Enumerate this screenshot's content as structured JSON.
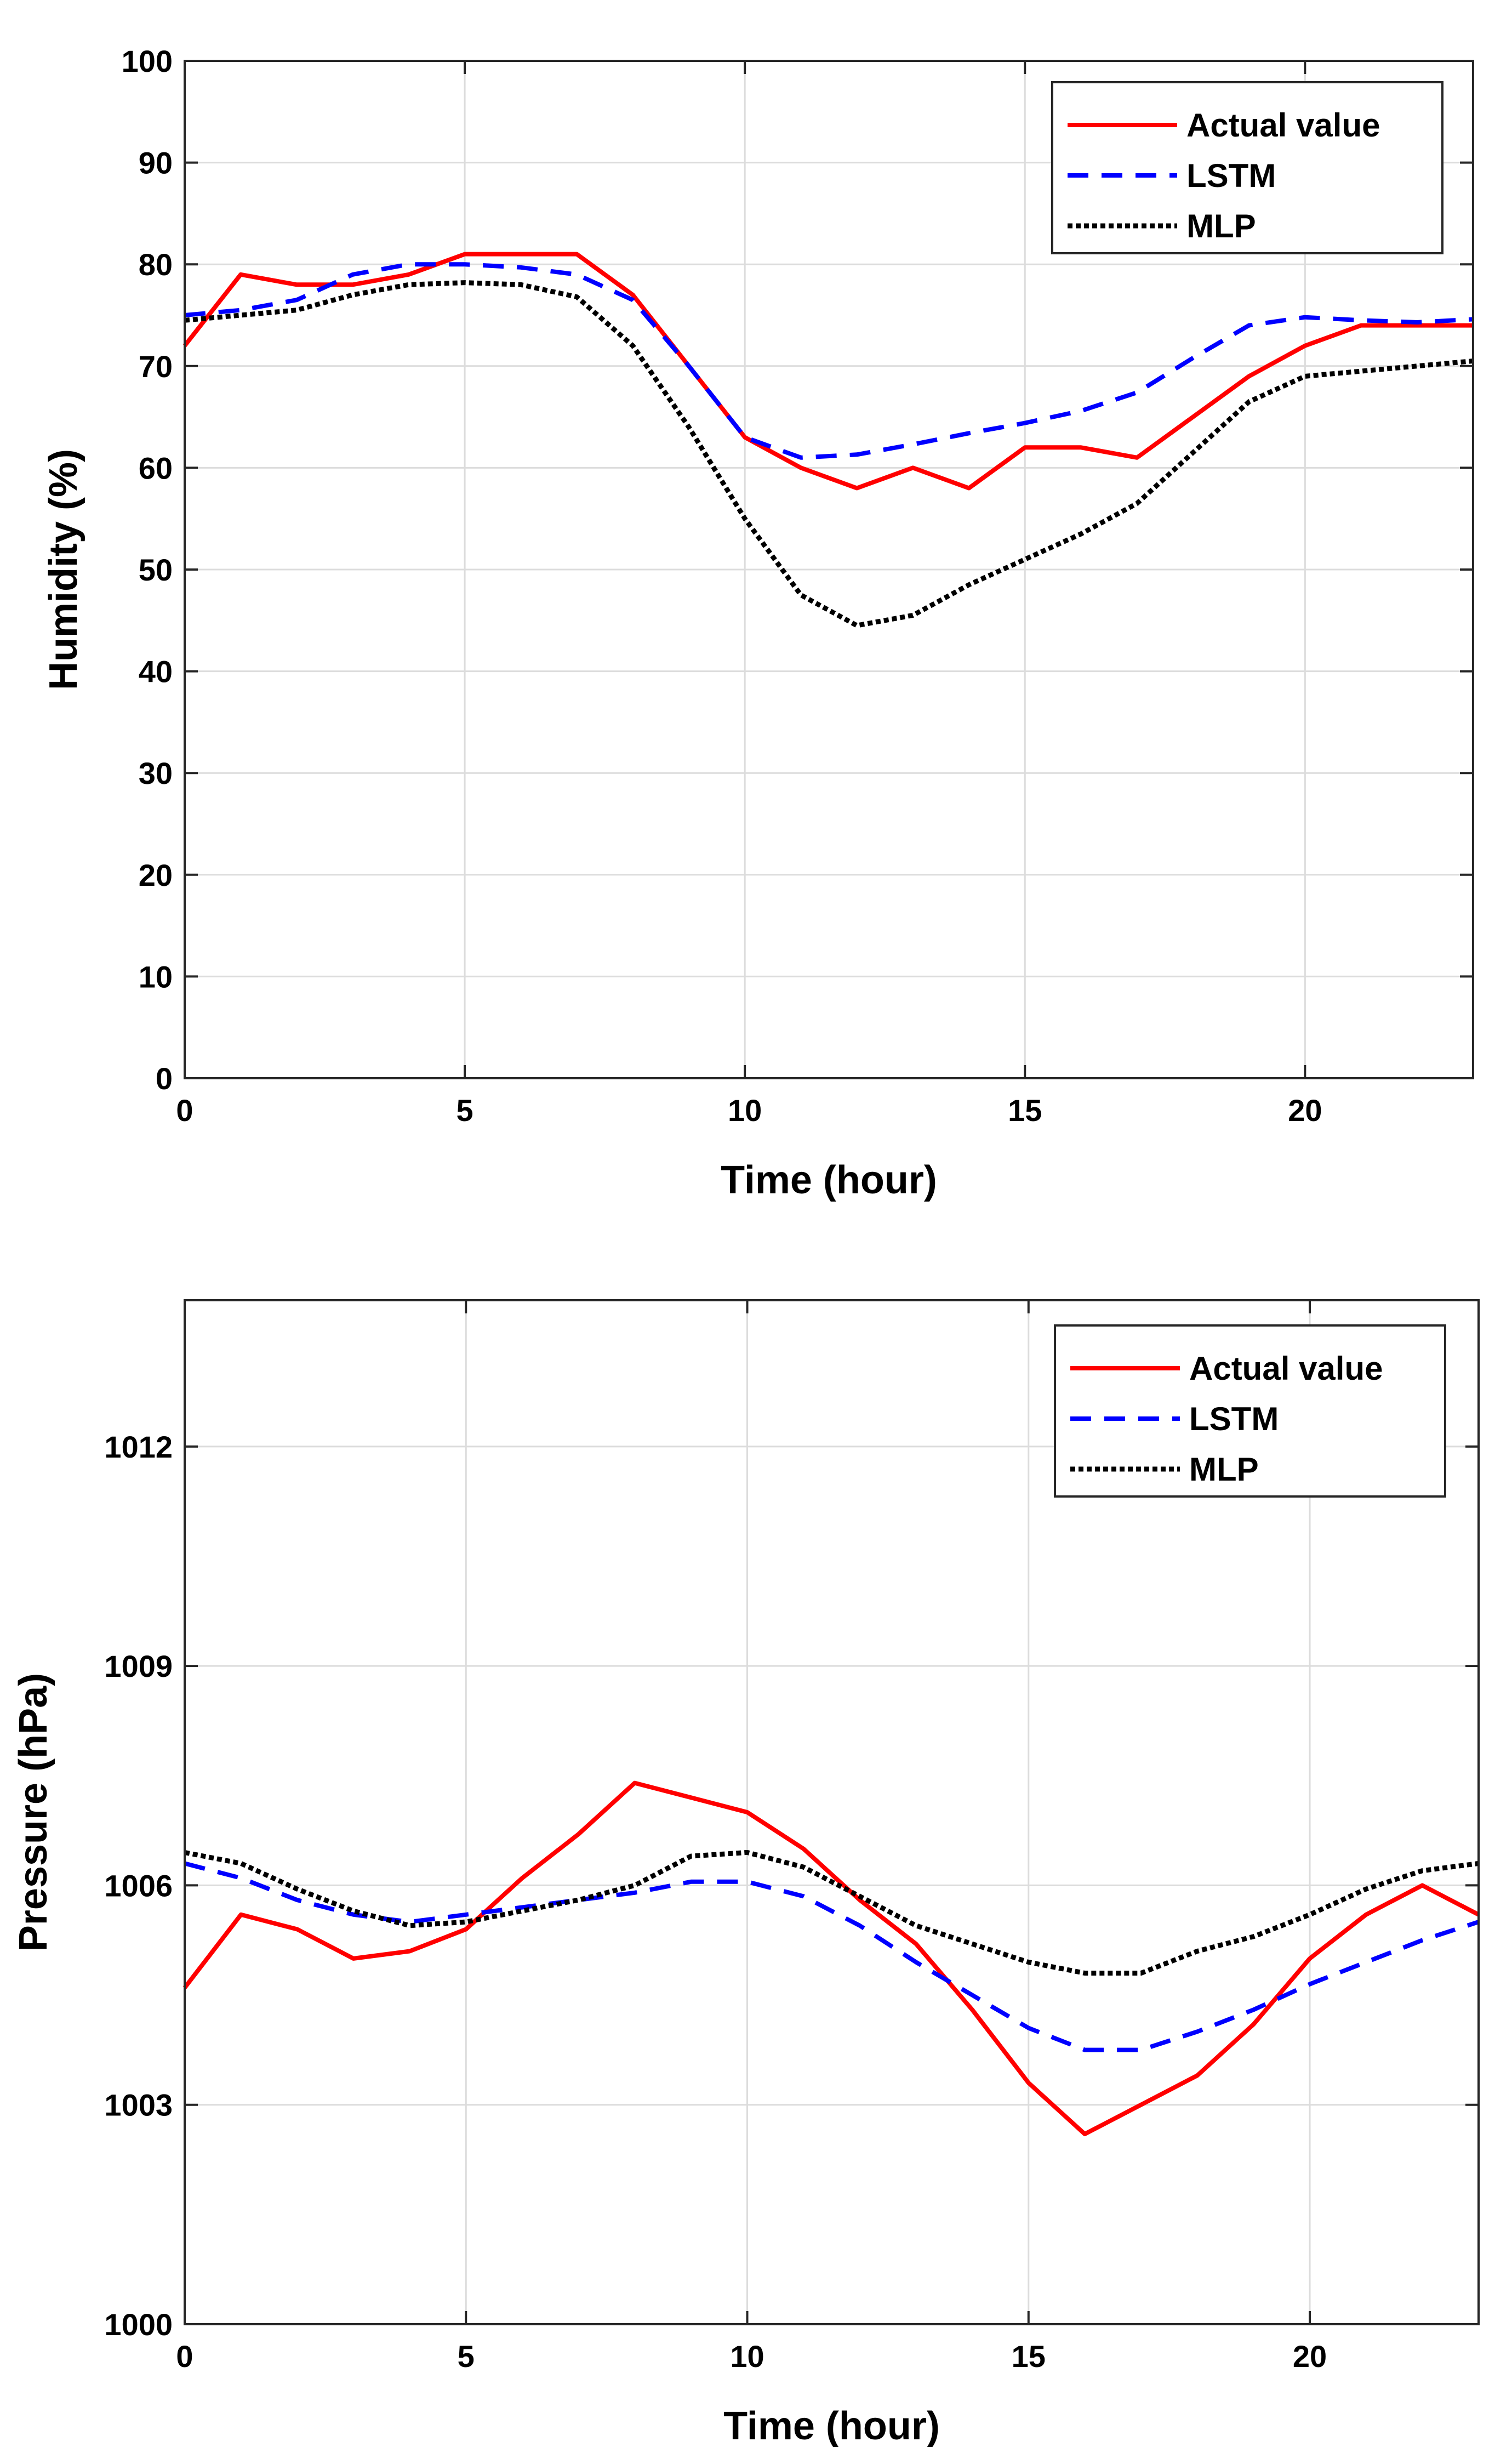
{
  "chart_data": [
    {
      "type": "line",
      "title": "",
      "xlabel": "Time (hour)",
      "ylabel": "Humidity (%)",
      "xlim": [
        0,
        23
      ],
      "ylim": [
        0,
        100
      ],
      "xticks": [
        0,
        5,
        10,
        15,
        20
      ],
      "xtick_labels": [
        "0",
        "5",
        "10",
        "15",
        "20"
      ],
      "yticks": [
        0,
        10,
        20,
        30,
        40,
        50,
        60,
        70,
        80,
        90,
        100
      ],
      "ytick_labels": [
        "0",
        "10",
        "20",
        "30",
        "40",
        "50",
        "60",
        "70",
        "80",
        "90",
        "100"
      ],
      "grid": true,
      "legend_position": "top-right",
      "x": [
        0,
        1,
        2,
        3,
        4,
        5,
        6,
        7,
        8,
        9,
        10,
        11,
        12,
        13,
        14,
        15,
        16,
        17,
        18,
        19,
        20,
        21,
        22,
        23
      ],
      "series": [
        {
          "name": "Actual value",
          "color": "#ff0000",
          "style": "solid",
          "values": [
            72,
            79,
            78,
            78,
            79,
            81,
            81,
            81,
            77,
            70,
            63,
            60,
            58,
            60,
            58,
            62,
            62,
            61,
            65,
            69,
            72,
            74,
            74,
            74
          ]
        },
        {
          "name": "LSTM",
          "color": "#0000ff",
          "style": "dashed",
          "values": [
            75,
            75.5,
            76.5,
            79,
            80,
            80,
            79.7,
            79,
            76.5,
            70,
            63,
            61,
            61.3,
            62.3,
            63.4,
            64.4,
            65.6,
            67.4,
            70.8,
            74,
            74.8,
            74.5,
            74.3,
            74.6
          ]
        },
        {
          "name": "MLP",
          "color": "#000000",
          "style": "dotted",
          "values": [
            74.5,
            75,
            75.5,
            77,
            78,
            78.2,
            78,
            76.8,
            72,
            64,
            55,
            47.5,
            44.5,
            45.5,
            48.5,
            51,
            53.5,
            56.5,
            61.5,
            66.5,
            69,
            69.5,
            70,
            70.5
          ]
        }
      ]
    },
    {
      "type": "line",
      "title": "",
      "xlabel": "Time (hour)",
      "ylabel": "Pressure (hPa)",
      "xlim": [
        0,
        23
      ],
      "ylim": [
        1000,
        1014
      ],
      "xticks": [
        0,
        5,
        10,
        15,
        20
      ],
      "xtick_labels": [
        "0",
        "5",
        "10",
        "15",
        "20"
      ],
      "yticks": [
        1000,
        1003,
        1006,
        1009,
        1012
      ],
      "ytick_labels": [
        "1000",
        "1003",
        "1006",
        "1009",
        "1012"
      ],
      "grid": true,
      "legend_position": "top-right",
      "x": [
        0,
        1,
        2,
        3,
        4,
        5,
        6,
        7,
        8,
        9,
        10,
        11,
        12,
        13,
        14,
        15,
        16,
        17,
        18,
        19,
        20,
        21,
        22,
        23
      ],
      "series": [
        {
          "name": "Actual value",
          "color": "#ff0000",
          "style": "solid",
          "values": [
            1004.6,
            1005.6,
            1005.4,
            1005.0,
            1005.1,
            1005.4,
            1006.1,
            1006.7,
            1007.4,
            1007.2,
            1007.0,
            1006.5,
            1005.8,
            1005.2,
            1004.3,
            1003.3,
            1002.6,
            1003.0,
            1003.4,
            1004.1,
            1005.0,
            1005.6,
            1006.0,
            1005.6
          ]
        },
        {
          "name": "LSTM",
          "color": "#0000ff",
          "style": "dashed",
          "values": [
            1006.3,
            1006.1,
            1005.8,
            1005.6,
            1005.5,
            1005.6,
            1005.7,
            1005.8,
            1005.9,
            1006.05,
            1006.05,
            1005.85,
            1005.45,
            1004.95,
            1004.5,
            1004.05,
            1003.75,
            1003.75,
            1004.0,
            1004.3,
            1004.65,
            1004.95,
            1005.25,
            1005.5
          ]
        },
        {
          "name": "MLP",
          "color": "#000000",
          "style": "dotted",
          "values": [
            1006.45,
            1006.3,
            1005.95,
            1005.65,
            1005.45,
            1005.5,
            1005.65,
            1005.8,
            1006.0,
            1006.4,
            1006.45,
            1006.25,
            1005.85,
            1005.45,
            1005.2,
            1004.95,
            1004.8,
            1004.8,
            1005.1,
            1005.3,
            1005.6,
            1005.95,
            1006.2,
            1006.3
          ]
        }
      ]
    }
  ]
}
